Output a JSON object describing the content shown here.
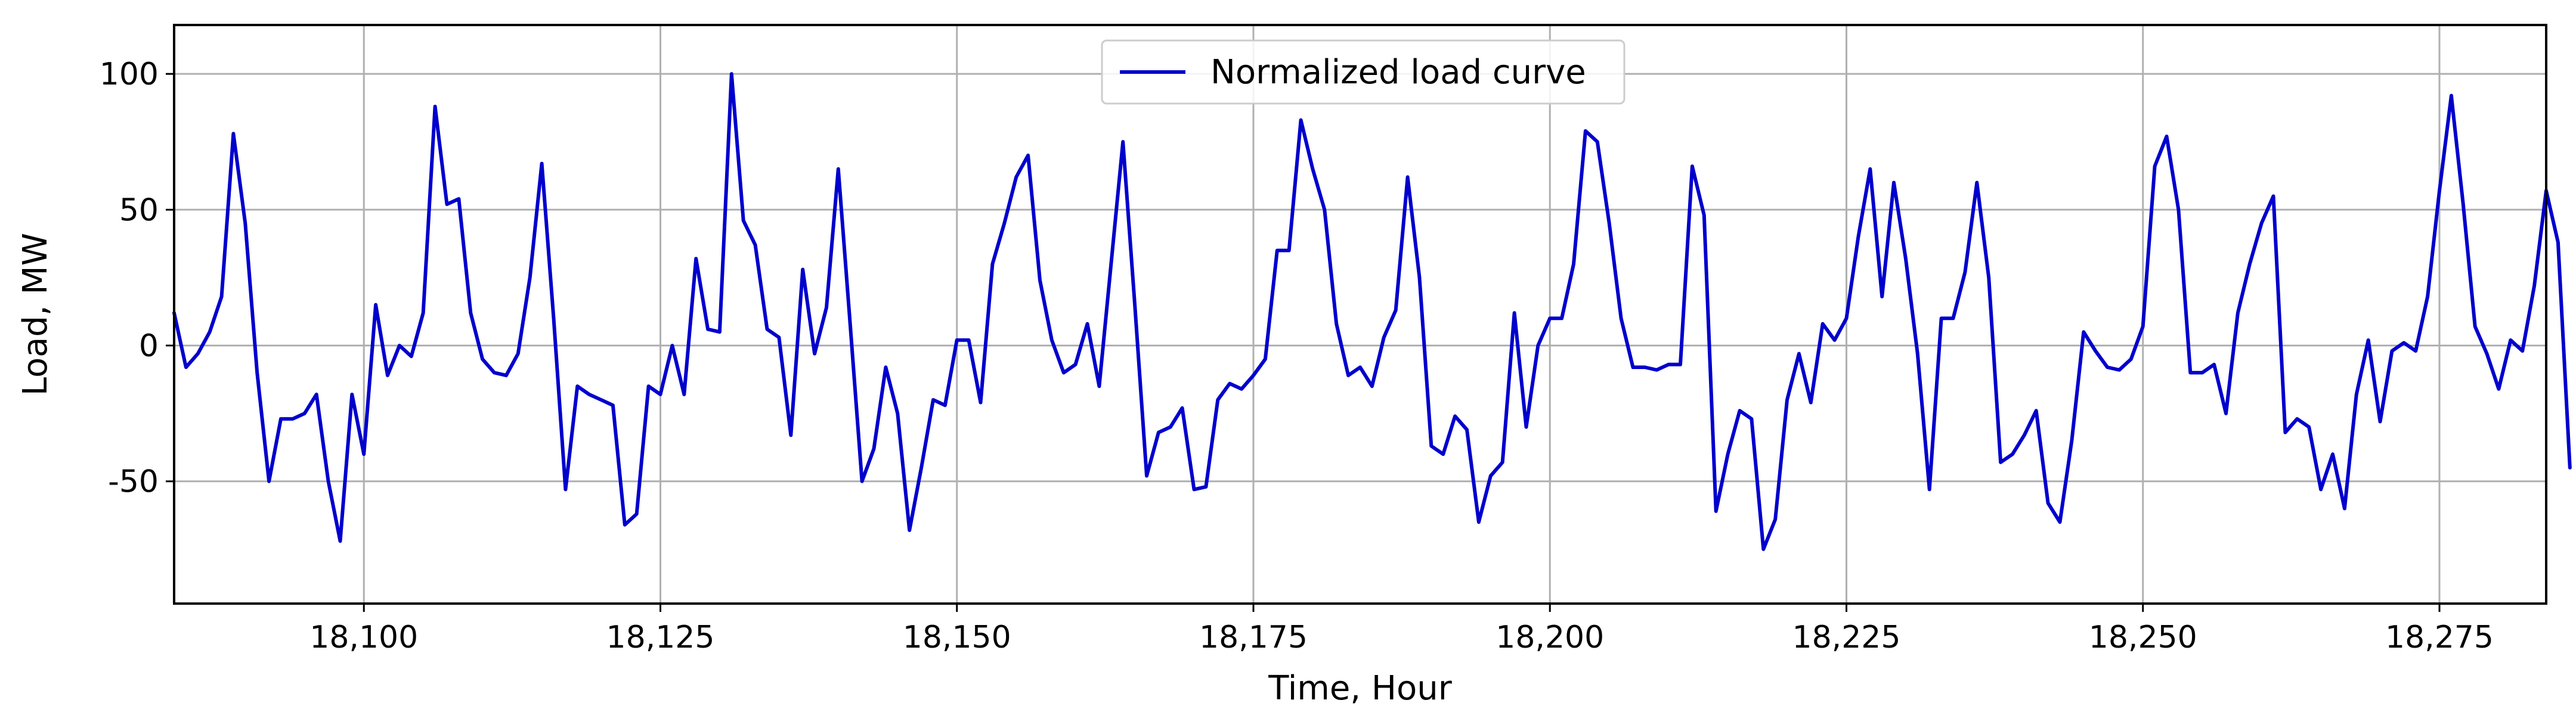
{
  "chart_data": {
    "type": "line",
    "title": "",
    "xlabel": "Time, Hour",
    "ylabel": "Load, MW",
    "xlim": [
      18084,
      18284
    ],
    "ylim": [
      -95,
      118
    ],
    "grid": true,
    "legend": {
      "placement": "top-center"
    },
    "x_ticks": [
      {
        "value": 18100,
        "label": "18,100"
      },
      {
        "value": 18125,
        "label": "18,125"
      },
      {
        "value": 18150,
        "label": "18,150"
      },
      {
        "value": 18175,
        "label": "18,175"
      },
      {
        "value": 18200,
        "label": "18,200"
      },
      {
        "value": 18225,
        "label": "18,225"
      },
      {
        "value": 18250,
        "label": "18,250"
      },
      {
        "value": 18275,
        "label": "18,275"
      }
    ],
    "y_ticks": [
      {
        "value": 100,
        "label": "100"
      },
      {
        "value": 50,
        "label": "50"
      },
      {
        "value": 0,
        "label": "0"
      },
      {
        "value": -50,
        "label": "-50"
      }
    ],
    "series": [
      {
        "name": "Normalized load curve",
        "color": "#0000cc",
        "x_start": 18084,
        "x_step": 1,
        "values": [
          12,
          -8,
          -3,
          5,
          18,
          78,
          45,
          -10,
          -50,
          -27,
          -27,
          -25,
          -18,
          -50,
          -72,
          -18,
          -40,
          15,
          -11,
          0,
          -4,
          12,
          88,
          52,
          54,
          12,
          -5,
          -10,
          -11,
          -3,
          25,
          67,
          10,
          -53,
          -15,
          -18,
          -20,
          -22,
          -66,
          -62,
          -15,
          -18,
          0,
          -18,
          32,
          6,
          5,
          100,
          46,
          37,
          6,
          3,
          -33,
          28,
          -3,
          14,
          65,
          8,
          -50,
          -38,
          -8,
          -25,
          -68,
          -45,
          -20,
          -22,
          2,
          2,
          -21,
          30,
          45,
          62,
          70,
          24,
          2,
          -10,
          -7,
          8,
          -15,
          30,
          75,
          15,
          -48,
          -32,
          -30,
          -23,
          -53,
          -52,
          -20,
          -14,
          -16,
          -11,
          -5,
          35,
          35,
          83,
          65,
          50,
          8,
          -11,
          -8,
          -15,
          3,
          13,
          62,
          25,
          -37,
          -40,
          -26,
          -31,
          -65,
          -48,
          -43,
          12,
          -30,
          0,
          10,
          10,
          30,
          79,
          75,
          45,
          10,
          -8,
          -8,
          -9,
          -7,
          -7,
          66,
          48,
          -61,
          -40,
          -24,
          -27,
          -75,
          -64,
          -20,
          -3,
          -21,
          8,
          2,
          10,
          40,
          65,
          18,
          60,
          32,
          -3,
          -53,
          10,
          10,
          27,
          60,
          25,
          -43,
          -40,
          -33,
          -24,
          -58,
          -65,
          -35,
          5,
          -2,
          -8,
          -9,
          -5,
          7,
          66,
          77,
          50,
          -10,
          -10,
          -7,
          -25,
          12,
          30,
          45,
          55,
          -32,
          -27,
          -30,
          -53,
          -40,
          -60,
          -18,
          2,
          -28,
          -2,
          1,
          -2,
          18,
          57,
          92,
          52,
          7,
          -3,
          -16,
          2,
          -2,
          22,
          57,
          38,
          -45
        ]
      }
    ]
  }
}
